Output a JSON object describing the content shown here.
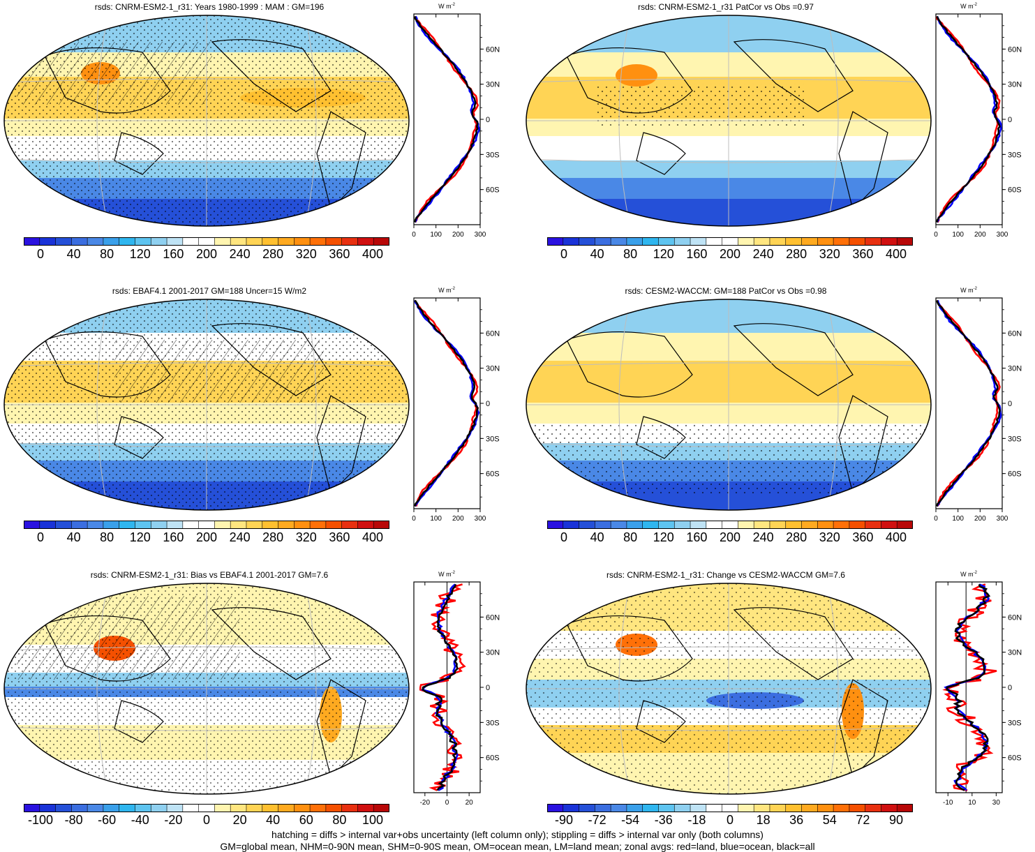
{
  "panels": [
    {
      "title": "rsds: CNRM-ESM2-1_r31: Years 1980-1999 : MAM : GM=196"
    },
    {
      "title": "rsds: CNRM-ESM2-1_r31 PatCor vs Obs =0.97"
    },
    {
      "title": "rsds: EBAF4.1 2001-2017 GM=188 Uncer=15 W/m2"
    },
    {
      "title": "rsds: CESM2-WACCM: GM=188 PatCor vs Obs =0.98"
    },
    {
      "title": "rsds: CNRM-ESM2-1_r31: Bias vs EBAF4.1 2001-2017 GM=7.6"
    },
    {
      "title": "rsds: CNRM-ESM2-1_r31: Change vs CESM2-WACCM GM=7.6"
    }
  ],
  "zonal": {
    "units": "W m",
    "units_sup": "-2",
    "lat_labels": [
      "60N",
      "30N",
      "0",
      "30S",
      "60S"
    ],
    "abs_ticks": [
      "0",
      "100",
      "200",
      "300"
    ],
    "bias_ticks": [
      "-20",
      "0",
      "20"
    ],
    "change_ticks": [
      "-10",
      "10",
      "30"
    ],
    "line_colors": {
      "land": "#ff0000",
      "ocean": "#0000ff",
      "all": "#000000"
    }
  },
  "colorbars": {
    "abs_labels": [
      "0",
      "40",
      "80",
      "120",
      "160",
      "200",
      "240",
      "280",
      "320",
      "360",
      "400"
    ],
    "bias_labels": [
      "-100",
      "-80",
      "-60",
      "-40",
      "-20",
      "0",
      "20",
      "40",
      "60",
      "80",
      "100"
    ],
    "change_labels": [
      "-90",
      "-72",
      "-54",
      "-36",
      "-18",
      "0",
      "18",
      "36",
      "54",
      "72",
      "90"
    ],
    "colors": [
      "#2a12e0",
      "#1a33d8",
      "#2550d8",
      "#3b6ee0",
      "#4a88e6",
      "#3aa0ea",
      "#2fb6ef",
      "#5ec4f0",
      "#8fd0f0",
      "#bfe3f5",
      "#ffffff",
      "#ffffff",
      "#fff5b0",
      "#ffe680",
      "#ffd455",
      "#ffc030",
      "#ffaa20",
      "#ff9010",
      "#ff7008",
      "#f55000",
      "#e83010",
      "#d01010",
      "#b80808"
    ]
  },
  "footer": {
    "line1": "hatching = diffs > internal var+obs uncertainty (left column only); stippling = diffs > internal var only (both columns)",
    "line2": "GM=global mean, NHM=0-90N mean, SHM=0-90S mean, OM=ocean mean, LM=land mean; zonal avgs: red=land, blue=ocean, black=all"
  }
}
